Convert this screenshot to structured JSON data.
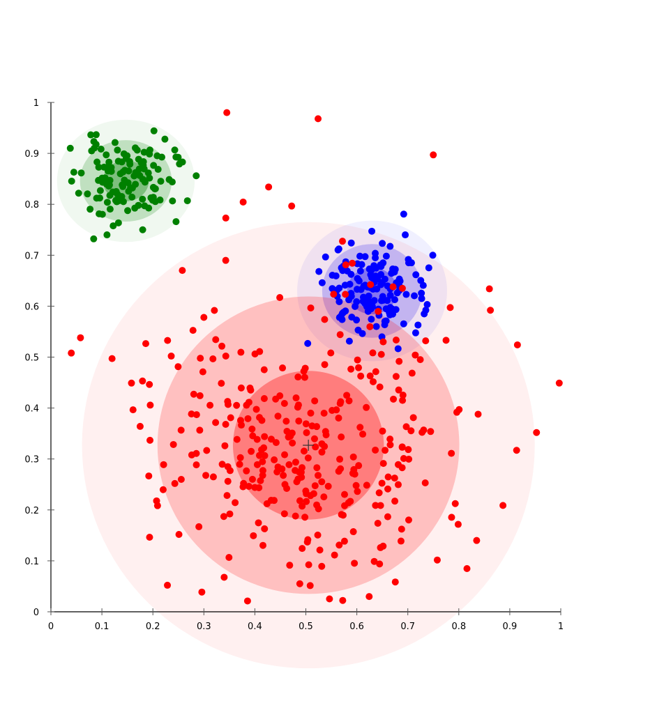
{
  "chart_data": {
    "type": "scatter",
    "title": "",
    "xlabel": "",
    "ylabel": "",
    "xlim": [
      0,
      1
    ],
    "ylim": [
      0,
      1
    ],
    "grid": false,
    "legend": "none",
    "x_ticks": [
      "0",
      "0.1",
      "0.2",
      "0.3",
      "0.4",
      "0.5",
      "0.6",
      "0.7",
      "0.8",
      "0.9",
      "1"
    ],
    "y_ticks": [
      "0",
      "0.1",
      "0.2",
      "0.3",
      "0.4",
      "0.5",
      "0.6",
      "0.7",
      "0.8",
      "0.9",
      "1"
    ],
    "center_marker": {
      "x": 0.505,
      "y": 0.327,
      "symbol": "+"
    },
    "clusters": [
      {
        "color": "#008000",
        "center": [
          0.147,
          0.846
        ],
        "sigma": [
          0.045,
          0.04
        ],
        "n_points": 120,
        "seed": 11,
        "ellipse_scales": [
          1,
          2,
          3
        ],
        "outliers": [
          [
            0.285,
            0.856
          ],
          [
            0.258,
            0.883
          ],
          [
            0.11,
            0.74
          ],
          [
            0.18,
            0.75
          ],
          [
            0.038,
            0.91
          ],
          [
            0.045,
            0.863
          ]
        ]
      },
      {
        "color": "#0000ff",
        "center": [
          0.63,
          0.63
        ],
        "sigma": [
          0.049,
          0.046
        ],
        "n_points": 140,
        "seed": 23,
        "ellipse_scales": [
          1,
          2,
          3
        ],
        "outliers": [
          [
            0.695,
            0.74
          ],
          [
            0.749,
            0.7
          ],
          [
            0.532,
            0.646
          ],
          [
            0.72,
            0.563
          ]
        ]
      },
      {
        "color": "#ff0000",
        "center": [
          0.505,
          0.327
        ],
        "sigma": [
          0.148,
          0.146
        ],
        "n_points": 320,
        "seed": 7,
        "ellipse_scales": [
          1,
          2,
          3
        ],
        "outliers": [
          [
            0.345,
            0.98
          ],
          [
            0.524,
            0.968
          ],
          [
            0.75,
            0.897
          ],
          [
            0.427,
            0.834
          ],
          [
            0.343,
            0.773
          ],
          [
            0.86,
            0.634
          ],
          [
            0.862,
            0.592
          ],
          [
            0.915,
            0.524
          ],
          [
            0.997,
            0.449
          ],
          [
            0.058,
            0.538
          ],
          [
            0.04,
            0.508
          ],
          [
            0.158,
            0.449
          ],
          [
            0.175,
            0.364
          ],
          [
            0.835,
            0.14
          ],
          [
            0.3,
            0.578
          ],
          [
            0.236,
            0.502
          ],
          [
            0.775,
            0.533
          ],
          [
            0.735,
            0.532
          ]
        ]
      }
    ]
  }
}
